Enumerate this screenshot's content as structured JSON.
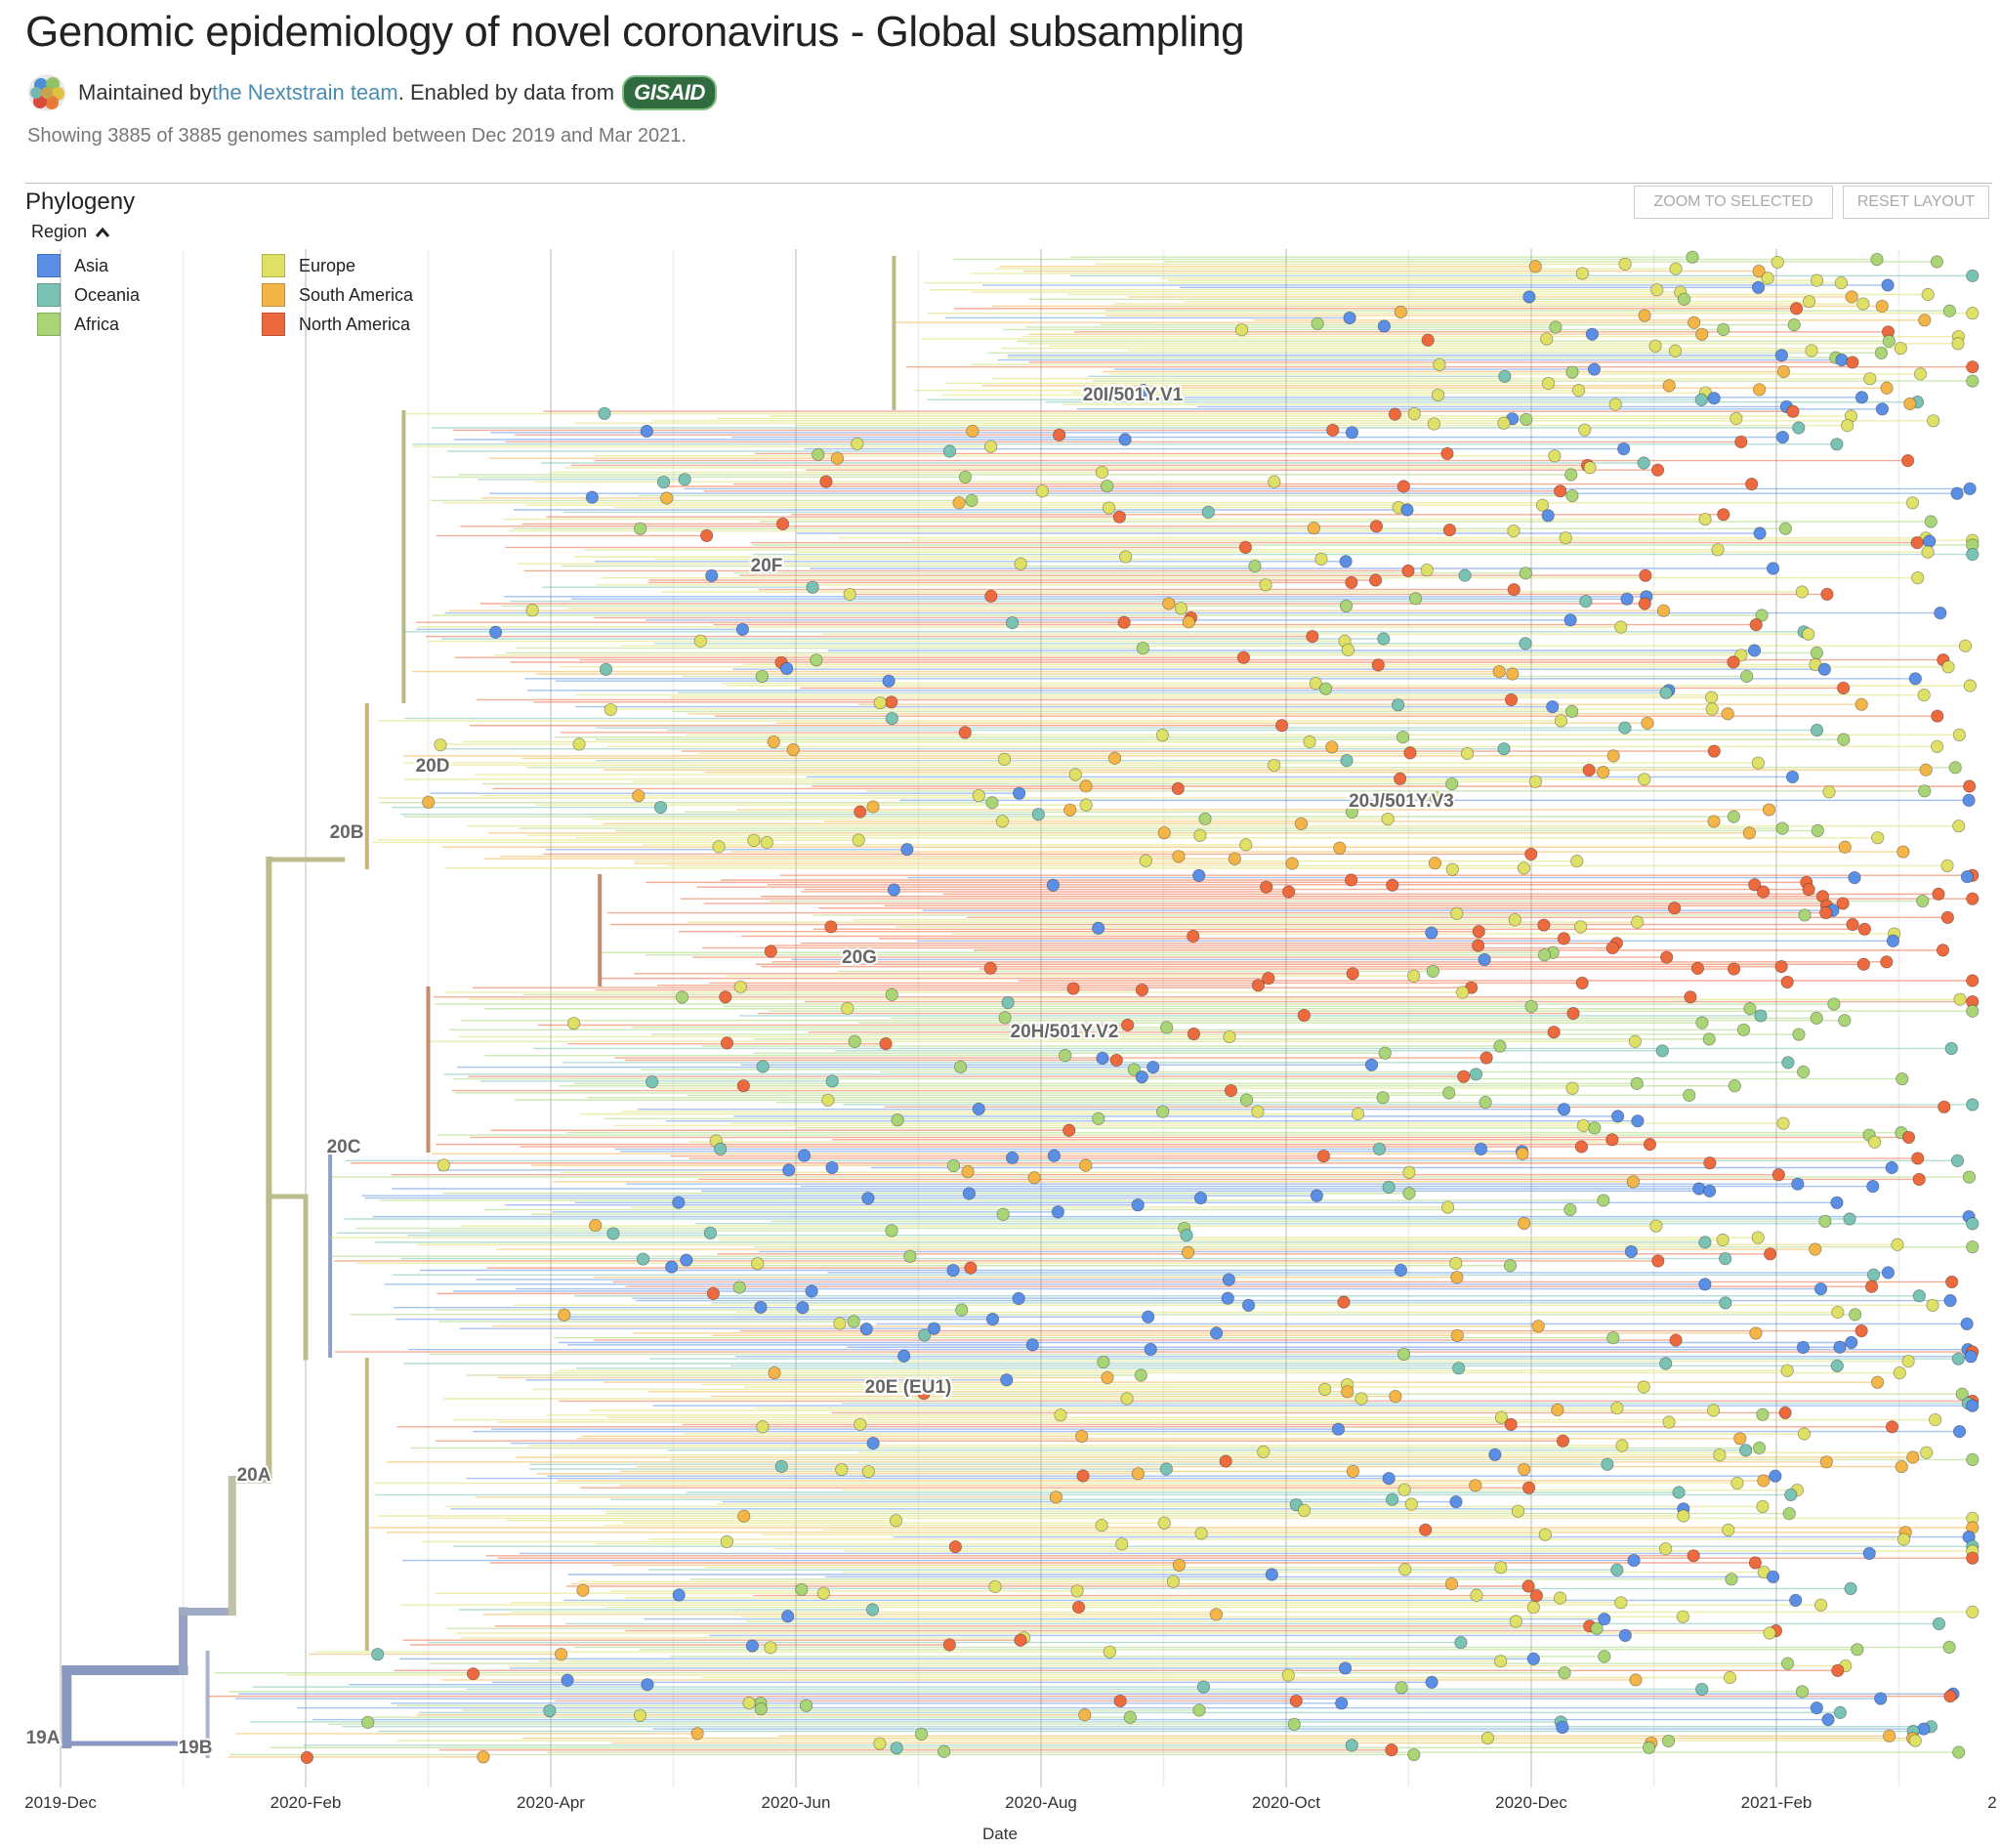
{
  "header": {
    "title": "Genomic epidemiology of novel coronavirus - Global subsampling",
    "maintained_prefix": "Maintained by ",
    "maintainer_link": "the Nextstrain team",
    "enabled_text": ". Enabled by data from",
    "gisaid_badge": "GISAID",
    "showing": "Showing 3885 of 3885 genomes sampled between Dec 2019 and Mar 2021."
  },
  "panel": {
    "title": "Phylogeny",
    "zoom_button": "ZOOM TO SELECTED",
    "reset_button": "RESET LAYOUT"
  },
  "legend": {
    "title": "Region",
    "toggle_icon": "chevron-up-icon",
    "items": [
      {
        "label": "Asia",
        "color": "#5b8fe6"
      },
      {
        "label": "Oceania",
        "color": "#79c2b4"
      },
      {
        "label": "Africa",
        "color": "#a9d576"
      },
      {
        "label": "Europe",
        "color": "#dfe066"
      },
      {
        "label": "South America",
        "color": "#f3b547"
      },
      {
        "label": "North America",
        "color": "#ec6a3e"
      }
    ]
  },
  "chart_data": {
    "type": "scatter",
    "subtype": "time-scaled phylogenetic tree",
    "xlabel": "Date",
    "x_ticks": [
      "2019-Dec",
      "2020-Feb",
      "2020-Apr",
      "2020-Jun",
      "2020-Aug",
      "2020-Oct",
      "2020-Dec",
      "2021-Feb",
      "2"
    ],
    "total_genomes": 3885,
    "color_by": "Region",
    "clades": [
      {
        "label": "19A",
        "date": "2019-12"
      },
      {
        "label": "19B",
        "date": "2020-01"
      },
      {
        "label": "20A",
        "date": "2020-01"
      },
      {
        "label": "20B",
        "date": "2020-02"
      },
      {
        "label": "20C",
        "date": "2020-02"
      },
      {
        "label": "20D",
        "date": "2020-02"
      },
      {
        "label": "20F",
        "date": "2020-05"
      },
      {
        "label": "20G",
        "date": "2020-06"
      },
      {
        "label": "20H/501Y.V2",
        "date": "2020-07"
      },
      {
        "label": "20E (EU1)",
        "date": "2020-06"
      },
      {
        "label": "20I/501Y.V1",
        "date": "2020-08"
      },
      {
        "label": "20J/501Y.V3",
        "date": "2020-11"
      }
    ]
  }
}
